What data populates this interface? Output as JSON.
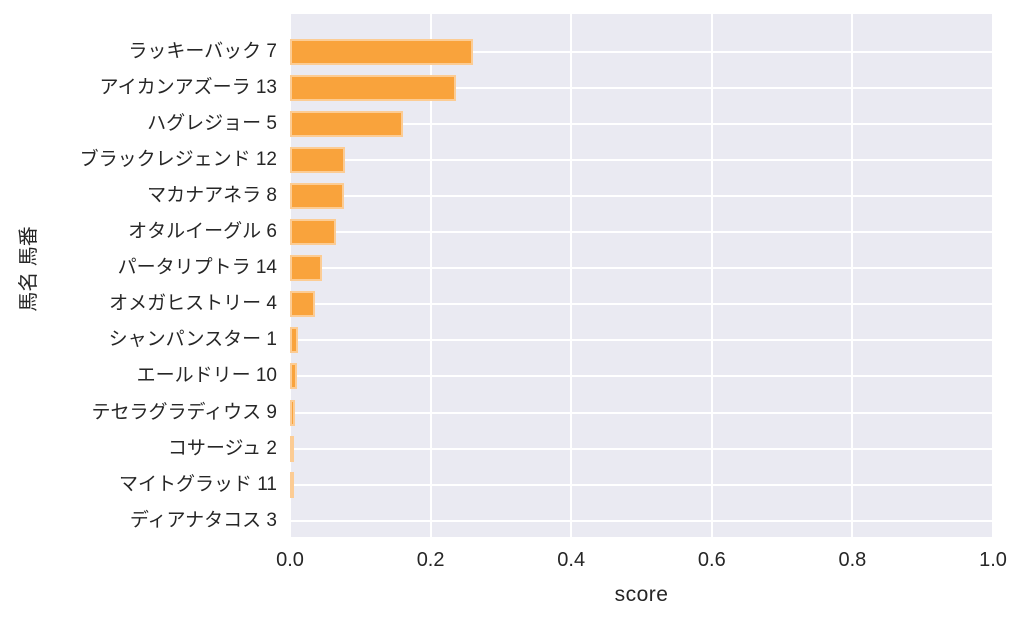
{
  "chart_data": {
    "type": "bar",
    "orientation": "horizontal",
    "title": "",
    "xlabel": "score",
    "ylabel": "馬名 馬番",
    "categories": [
      "ラッキーバック 7",
      "アイカンアズーラ 13",
      "ハグレジョー 5",
      "ブラックレジェンド 12",
      "マカナアネラ 8",
      "オタルイーグル 6",
      "パータリプトラ 14",
      "オメガヒストリー 4",
      "シャンパンスター 1",
      "エールドリー 10",
      "テセラグラディウス 9",
      "コサージュ 2",
      "マイトグラッド 11",
      "ディアナタコス 3"
    ],
    "values": [
      0.26,
      0.236,
      0.161,
      0.078,
      0.077,
      0.066,
      0.045,
      0.035,
      0.012,
      0.01,
      0.007,
      0.006,
      0.003,
      0.0
    ],
    "xlim": [
      0.0,
      1.0
    ],
    "xticks": [
      "0.0",
      "0.2",
      "0.4",
      "0.6",
      "0.8",
      "1.0"
    ],
    "xtick_values": [
      0.0,
      0.2,
      0.4,
      0.6,
      0.8,
      1.0
    ],
    "grid": true,
    "legend_position": "none",
    "colors": {
      "bar": "#F9A33C",
      "plot_background": "#EAEAF2",
      "gridline": "#FFFFFF",
      "text": "#262626",
      "figure_background": "#FFFFFF"
    }
  }
}
